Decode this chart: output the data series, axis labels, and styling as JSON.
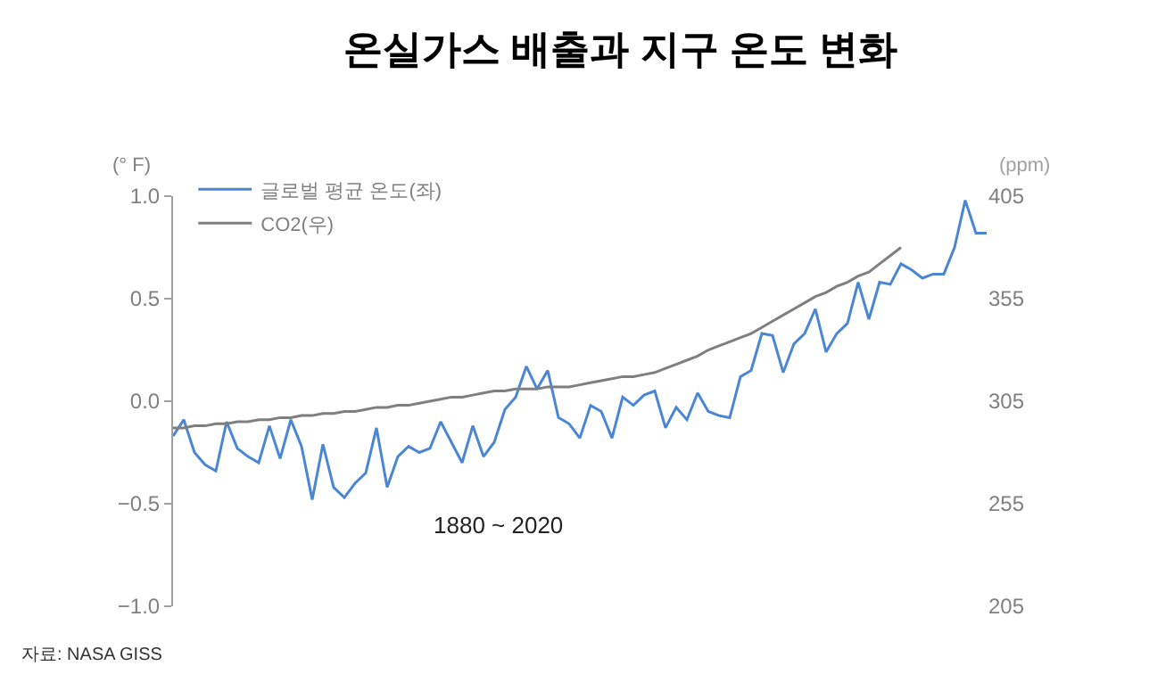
{
  "chart_data": {
    "type": "line",
    "title": "온실가스 배출과 지구 온도 변화",
    "ylabel": "(° F)",
    "y2label": "(ppm)",
    "annotations": [
      "1880 ~ 2020",
      "자료: NASA GISS"
    ],
    "categories": [
      null,
      null,
      null,
      null,
      null,
      null,
      null,
      null,
      null,
      null,
      null,
      null,
      null,
      null,
      null,
      null,
      null,
      null,
      null,
      null,
      null,
      null,
      null,
      null,
      null,
      null,
      null,
      null,
      null,
      null,
      null,
      null,
      null,
      null,
      null,
      null,
      null,
      null,
      null,
      null,
      null,
      null,
      null,
      null,
      null,
      null,
      null,
      null,
      null,
      null,
      null,
      null,
      null,
      null,
      null,
      null,
      null,
      null,
      null,
      null,
      null,
      null,
      null,
      null,
      null,
      null,
      null,
      null,
      null,
      null,
      null,
      null,
      null,
      null,
      null,
      null,
      null
    ],
    "series": [
      {
        "name": "글로벌 평균 온도(좌)",
        "color": "#4a86d4",
        "values": [
          -0.17,
          -0.09,
          -0.25,
          -0.31,
          -0.34,
          -0.1,
          -0.23,
          -0.27,
          -0.3,
          -0.12,
          -0.28,
          -0.09,
          -0.22,
          -0.48,
          -0.21,
          -0.42,
          -0.47,
          -0.4,
          -0.35,
          -0.13,
          -0.42,
          -0.27,
          -0.22,
          -0.25,
          -0.23,
          -0.1,
          -0.2,
          -0.3,
          -0.12,
          -0.27,
          -0.2,
          -0.04,
          0.02,
          0.17,
          0.06,
          0.15,
          -0.08,
          -0.11,
          -0.18,
          -0.02,
          -0.05,
          -0.18,
          0.02,
          -0.02,
          0.03,
          0.05,
          -0.13,
          -0.03,
          -0.09,
          0.04,
          -0.05,
          -0.07,
          -0.08,
          0.12,
          0.15,
          0.33,
          0.32,
          0.14,
          0.28,
          0.33,
          0.45,
          0.24,
          0.33,
          0.38,
          0.58,
          0.4,
          0.58,
          0.57,
          0.67,
          0.64,
          0.6,
          0.62,
          0.62,
          0.75,
          0.98,
          0.82,
          0.82
        ]
      },
      {
        "name": "CO2(우)",
        "color": "#7f7f7f",
        "axis": "y2",
        "values": [
          292,
          292,
          293,
          293,
          294,
          294,
          295,
          295,
          296,
          296,
          297,
          297,
          298,
          298,
          299,
          299,
          300,
          300,
          301,
          302,
          302,
          303,
          303,
          304,
          305,
          306,
          307,
          307,
          308,
          309,
          310,
          310,
          311,
          311,
          311,
          312,
          312,
          312,
          313,
          314,
          315,
          316,
          317,
          317,
          318,
          319,
          321,
          323,
          325,
          327,
          330,
          332,
          334,
          336,
          338,
          341,
          344,
          347,
          350,
          353,
          356,
          358,
          361,
          363,
          366,
          368,
          372,
          376,
          380,
          null,
          null,
          null,
          null,
          null,
          null,
          null,
          null
        ]
      }
    ],
    "ylim": [
      -1,
      1
    ],
    "yticks": [
      {
        "value": -1,
        "label": "−1.0"
      },
      {
        "value": -0.5,
        "label": "−0.5"
      },
      {
        "value": 0,
        "label": "0.0"
      },
      {
        "value": 0.5,
        "label": "0.5"
      },
      {
        "value": 1,
        "label": "1.0"
      }
    ],
    "y2lim": [
      205,
      405
    ],
    "y2ticks": [
      205,
      255,
      305,
      355,
      405
    ],
    "grid": false,
    "legend": "top left",
    "marker": "none",
    "line_style": "solid"
  }
}
